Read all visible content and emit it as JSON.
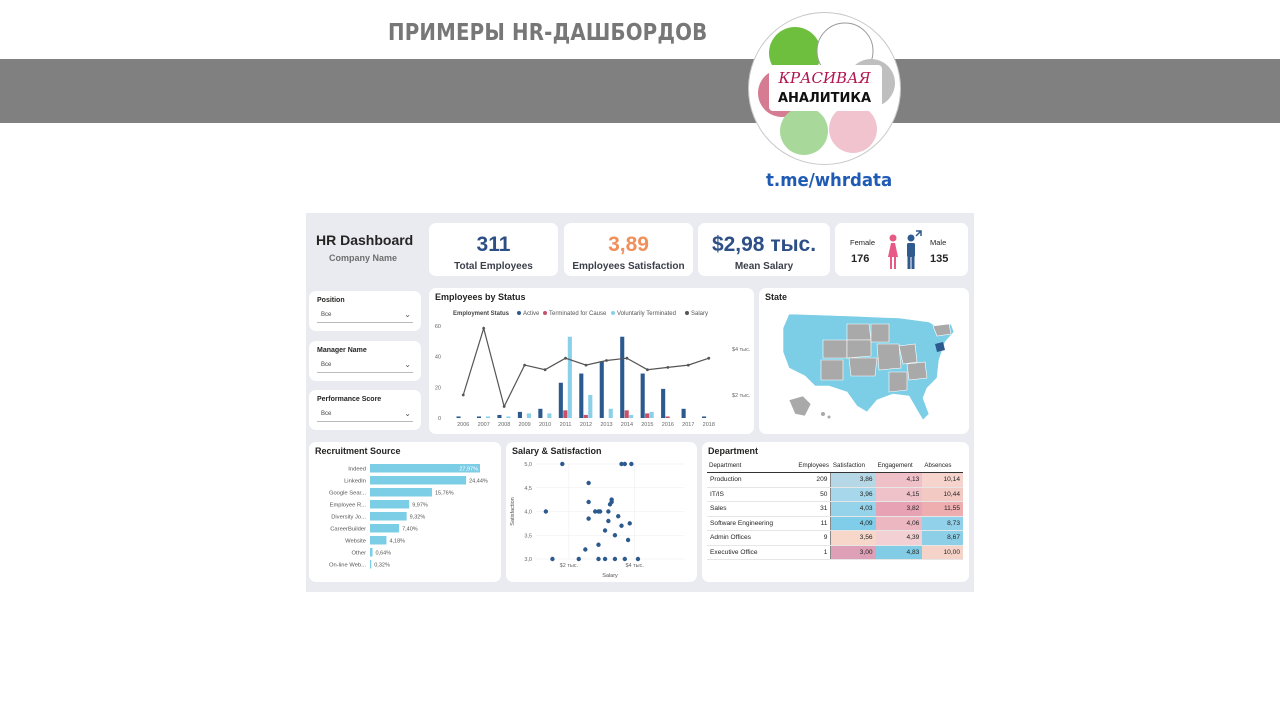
{
  "banner": {
    "title": "ПРИМЕРЫ HR-ДАШБОРДОВ",
    "logo_top": "КРАСИВАЯ",
    "logo_bottom": "АНАЛИТИКА",
    "link": "t.me/whrdata"
  },
  "dashboard": {
    "title": "HR Dashboard",
    "company": "Company Name",
    "kpis": [
      {
        "value": "311",
        "label": "Total Employees",
        "color": "#2d4f86"
      },
      {
        "value": "3,89",
        "label": "Employees Satisfaction",
        "color": "#f0905a"
      },
      {
        "value": "$2,98 тыс.",
        "label": "Mean Salary",
        "color": "#2d4f86"
      }
    ],
    "gender": {
      "female_label": "Female",
      "female_value": "176",
      "male_label": "Male",
      "male_value": "135",
      "female_color": "#e85a86",
      "male_color": "#2f5b8f"
    },
    "slicers": [
      {
        "label": "Position",
        "value": "Все"
      },
      {
        "label": "Manager Name",
        "value": "Все"
      },
      {
        "label": "Performance Score",
        "value": "Все"
      }
    ],
    "colors": {
      "active": "#2d5a8e",
      "terminated_cause": "#c9506a",
      "voluntary": "#8ad0e8",
      "salary": "#555555",
      "map_blue": "#7ccde6",
      "map_grey": "#a9a9a9"
    }
  },
  "chart_data": [
    {
      "type": "bar",
      "title": "Employees by Status",
      "legend_title": "Employment Status",
      "categories": [
        "2006",
        "2007",
        "2008",
        "2009",
        "2010",
        "2011",
        "2012",
        "2013",
        "2014",
        "2015",
        "2016",
        "2017",
        "2018"
      ],
      "series": [
        {
          "name": "Active",
          "values": [
            1,
            1,
            2,
            4,
            6,
            23,
            29,
            37,
            53,
            29,
            19,
            6,
            1
          ]
        },
        {
          "name": "Terminated for Cause",
          "values": [
            0,
            0,
            0,
            0,
            0,
            5,
            2,
            0,
            5,
            3,
            1,
            0,
            0
          ]
        },
        {
          "name": "Voluntarily Terminated",
          "values": [
            0,
            1,
            1,
            3,
            3,
            53,
            15,
            6,
            2,
            4,
            0,
            0,
            0
          ]
        },
        {
          "name": "Salary",
          "values": [
            2.0,
            4.9,
            1.5,
            3.3,
            3.1,
            3.6,
            3.3,
            3.5,
            3.6,
            3.1,
            3.2,
            3.3,
            3.6
          ]
        }
      ],
      "y_ticks": [
        "0",
        "20",
        "40",
        "60"
      ],
      "y2_ticks": [
        "$2 тыс.",
        "$4 тыс."
      ],
      "ylim": [
        0,
        60
      ],
      "y2lim": [
        1,
        5
      ],
      "legend_placement": "top"
    },
    {
      "type": "bar",
      "orientation": "horizontal",
      "title": "Recruitment Source",
      "categories": [
        "Indeed",
        "LinkedIn",
        "Google Sear...",
        "Employee R...",
        "Diversity Jo...",
        "CareerBuilder",
        "Website",
        "Other",
        "On-line Web..."
      ],
      "values": [
        27.97,
        24.44,
        15.76,
        9.97,
        9.32,
        7.4,
        4.18,
        0.64,
        0.32
      ],
      "labels": [
        "27,97%",
        "24,44%",
        "15,76%",
        "9,97%",
        "9,32%",
        "7,40%",
        "4,18%",
        "0,64%",
        "0,32%"
      ]
    },
    {
      "type": "scatter",
      "title": "Salary & Satisfaction",
      "xlabel": "Salary",
      "ylabel": "Satisfaction",
      "x_ticks": [
        "$2 тыс.",
        "$4 тыс."
      ],
      "y_ticks": [
        "3,0",
        "3,5",
        "4,0",
        "4,5",
        "5,0"
      ],
      "ylim": [
        3.0,
        5.0
      ],
      "xlim": [
        1.0,
        5.5
      ],
      "points": [
        [
          1.8,
          5.0
        ],
        [
          3.6,
          5.0
        ],
        [
          3.7,
          5.0
        ],
        [
          3.9,
          5.0
        ],
        [
          1.3,
          4.0
        ],
        [
          2.6,
          4.2
        ],
        [
          2.8,
          4.0
        ],
        [
          2.9,
          4.0
        ],
        [
          2.95,
          4.0
        ],
        [
          3.2,
          4.0
        ],
        [
          3.25,
          4.15
        ],
        [
          3.3,
          4.2
        ],
        [
          3.3,
          4.25
        ],
        [
          2.6,
          3.85
        ],
        [
          3.2,
          3.8
        ],
        [
          3.6,
          3.7
        ],
        [
          3.85,
          3.75
        ],
        [
          3.1,
          3.6
        ],
        [
          3.4,
          3.5
        ],
        [
          2.9,
          3.3
        ],
        [
          2.5,
          3.2
        ],
        [
          2.9,
          3.0
        ],
        [
          1.5,
          3.0
        ],
        [
          2.3,
          3.0
        ],
        [
          3.1,
          3.0
        ],
        [
          3.4,
          3.0
        ],
        [
          3.7,
          3.0
        ],
        [
          4.1,
          3.0
        ],
        [
          3.8,
          3.4
        ],
        [
          2.6,
          4.6
        ],
        [
          3.5,
          3.9
        ]
      ]
    }
  ],
  "department": {
    "title": "Department",
    "columns": [
      "Department",
      "Employees",
      "Satisfaction",
      "Engagement",
      "Absences"
    ],
    "rows": [
      {
        "name": "Production",
        "employees": "209",
        "satisfaction": "3,86",
        "engagement": "4,13",
        "absences": "10,14"
      },
      {
        "name": "IT/IS",
        "employees": "50",
        "satisfaction": "3,96",
        "engagement": "4,15",
        "absences": "10,44"
      },
      {
        "name": "Sales",
        "employees": "31",
        "satisfaction": "4,03",
        "engagement": "3,82",
        "absences": "11,55"
      },
      {
        "name": "Software Engineering",
        "employees": "11",
        "satisfaction": "4,09",
        "engagement": "4,06",
        "absences": "8,73"
      },
      {
        "name": "Admin Offices",
        "employees": "9",
        "satisfaction": "3,56",
        "engagement": "4,39",
        "absences": "8,67"
      },
      {
        "name": "Executive Office",
        "employees": "1",
        "satisfaction": "3,00",
        "engagement": "4,83",
        "absences": "10,00"
      }
    ]
  },
  "map": {
    "title": "State"
  }
}
